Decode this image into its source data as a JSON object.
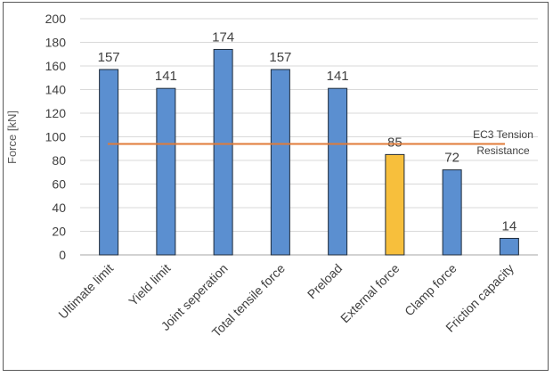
{
  "chart_data": {
    "type": "bar",
    "title": "",
    "xlabel": "",
    "ylabel": "Force [kN]",
    "ylim": [
      0,
      200
    ],
    "yticks": [
      0,
      20,
      40,
      60,
      80,
      100,
      120,
      140,
      160,
      180,
      200
    ],
    "categories": [
      "Ultimate limit",
      "Yield limit",
      "Joint seperation",
      "Total tensile force",
      "Preload",
      "External force",
      "Clamp force",
      "Friction capacity"
    ],
    "values": [
      157,
      141,
      174,
      157,
      141,
      85,
      72,
      14
    ],
    "data_labels": [
      "157",
      "141",
      "174",
      "157",
      "141",
      "85",
      "72",
      "14"
    ],
    "bar_colors": [
      "#5b8fd0",
      "#5b8fd0",
      "#5b8fd0",
      "#5b8fd0",
      "#5b8fd0",
      "#f7bf3c",
      "#5b8fd0",
      "#5b8fd0"
    ],
    "gridlines": true,
    "reference_line": {
      "value": 94,
      "color": "#e07b39",
      "label_line1": "EC3 Tension",
      "label_line2": "Resistance"
    }
  }
}
